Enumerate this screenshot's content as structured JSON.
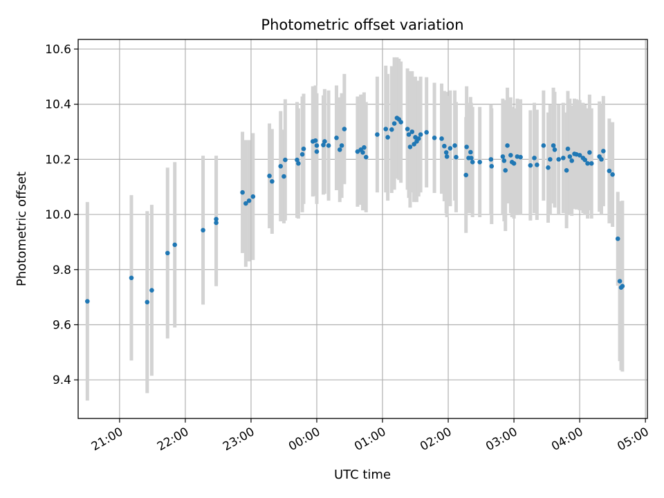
{
  "chart_data": {
    "type": "scatter",
    "title": "Photometric offset variation",
    "xlabel": "UTC time",
    "ylabel": "Photometric offset",
    "x_unit": "hours since 00:00 UTC",
    "xlim": [
      -3.63,
      5.03
    ],
    "ylim": [
      9.26,
      10.635
    ],
    "grid": true,
    "colors": {
      "point": "#1f77b4",
      "errorbar": "#d3d3d3",
      "grid": "#b0b0b0"
    },
    "x_ticks": [
      {
        "value": -3,
        "label": "21:00"
      },
      {
        "value": -2,
        "label": "22:00"
      },
      {
        "value": -1,
        "label": "23:00"
      },
      {
        "value": 0,
        "label": "00:00"
      },
      {
        "value": 1,
        "label": "01:00"
      },
      {
        "value": 2,
        "label": "02:00"
      },
      {
        "value": 3,
        "label": "03:00"
      },
      {
        "value": 4,
        "label": "04:00"
      },
      {
        "value": 5,
        "label": "05:00"
      }
    ],
    "y_ticks": [
      {
        "value": 9.4,
        "label": "9.4"
      },
      {
        "value": 9.6,
        "label": "9.6"
      },
      {
        "value": 9.8,
        "label": "9.8"
      },
      {
        "value": 10.0,
        "label": "10.0"
      },
      {
        "value": 10.2,
        "label": "10.2"
      },
      {
        "value": 10.4,
        "label": "10.4"
      },
      {
        "value": 10.6,
        "label": "10.6"
      }
    ],
    "points": [
      [
        -3.49,
        9.685,
        0.36
      ],
      [
        -2.82,
        9.77,
        0.3
      ],
      [
        -2.58,
        9.682,
        0.33
      ],
      [
        -2.51,
        9.725,
        0.31
      ],
      [
        -2.27,
        9.86,
        0.31
      ],
      [
        -2.16,
        9.89,
        0.3
      ],
      [
        -1.73,
        9.943,
        0.27
      ],
      [
        -1.53,
        9.97,
        0.23
      ],
      [
        -1.53,
        9.983,
        0.23
      ],
      [
        -1.13,
        10.08,
        0.22
      ],
      [
        -1.08,
        10.04,
        0.23
      ],
      [
        -1.03,
        10.05,
        0.22
      ],
      [
        -0.97,
        10.065,
        0.23
      ],
      [
        -0.72,
        10.14,
        0.19
      ],
      [
        -0.68,
        10.12,
        0.19
      ],
      [
        -0.55,
        10.175,
        0.2
      ],
      [
        -0.5,
        10.138,
        0.17
      ],
      [
        -0.48,
        10.198,
        0.22
      ],
      [
        -0.3,
        10.198,
        0.21
      ],
      [
        -0.28,
        10.185,
        0.2
      ],
      [
        -0.22,
        10.218,
        0.21
      ],
      [
        -0.2,
        10.238,
        0.2
      ],
      [
        -0.06,
        10.265,
        0.2
      ],
      [
        -0.02,
        10.268,
        0.2
      ],
      [
        0.0,
        10.25,
        0.19
      ],
      [
        0.0,
        10.228,
        0.19
      ],
      [
        0.1,
        10.252,
        0.18
      ],
      [
        0.12,
        10.265,
        0.19
      ],
      [
        0.18,
        10.25,
        0.2
      ],
      [
        0.3,
        10.278,
        0.19
      ],
      [
        0.35,
        10.235,
        0.19
      ],
      [
        0.38,
        10.25,
        0.19
      ],
      [
        0.42,
        10.31,
        0.2
      ],
      [
        0.62,
        10.228,
        0.2
      ],
      [
        0.67,
        10.235,
        0.2
      ],
      [
        0.7,
        10.225,
        0.21
      ],
      [
        0.72,
        10.243,
        0.2
      ],
      [
        0.75,
        10.208,
        0.2
      ],
      [
        0.92,
        10.29,
        0.21
      ],
      [
        1.05,
        10.31,
        0.23
      ],
      [
        1.08,
        10.28,
        0.23
      ],
      [
        1.14,
        10.308,
        0.23
      ],
      [
        1.18,
        10.33,
        0.24
      ],
      [
        1.22,
        10.35,
        0.22
      ],
      [
        1.25,
        10.345,
        0.22
      ],
      [
        1.28,
        10.335,
        0.22
      ],
      [
        1.38,
        10.31,
        0.22
      ],
      [
        1.4,
        10.29,
        0.23
      ],
      [
        1.42,
        10.245,
        0.22
      ],
      [
        1.45,
        10.3,
        0.22
      ],
      [
        1.48,
        10.255,
        0.21
      ],
      [
        1.5,
        10.28,
        0.22
      ],
      [
        1.52,
        10.265,
        0.22
      ],
      [
        1.55,
        10.275,
        0.21
      ],
      [
        1.58,
        10.29,
        0.21
      ],
      [
        1.67,
        10.298,
        0.2
      ],
      [
        1.79,
        10.278,
        0.2
      ],
      [
        1.9,
        10.275,
        0.2
      ],
      [
        1.94,
        10.248,
        0.2
      ],
      [
        1.97,
        10.225,
        0.22
      ],
      [
        1.98,
        10.21,
        0.22
      ],
      [
        2.03,
        10.24,
        0.21
      ],
      [
        2.1,
        10.25,
        0.2
      ],
      [
        2.12,
        10.208,
        0.2
      ],
      [
        2.27,
        10.143,
        0.21
      ],
      [
        2.28,
        10.245,
        0.22
      ],
      [
        2.31,
        10.205,
        0.2
      ],
      [
        2.34,
        10.226,
        0.2
      ],
      [
        2.35,
        10.205,
        0.2
      ],
      [
        2.37,
        10.19,
        0.2
      ],
      [
        2.48,
        10.19,
        0.2
      ],
      [
        2.65,
        10.2,
        0.2
      ],
      [
        2.66,
        10.175,
        0.21
      ],
      [
        2.83,
        10.21,
        0.21
      ],
      [
        2.85,
        10.195,
        0.22
      ],
      [
        2.87,
        10.16,
        0.22
      ],
      [
        2.9,
        10.25,
        0.21
      ],
      [
        2.95,
        10.215,
        0.21
      ],
      [
        2.97,
        10.19,
        0.2
      ],
      [
        3.0,
        10.185,
        0.2
      ],
      [
        3.05,
        10.21,
        0.21
      ],
      [
        3.1,
        10.208,
        0.21
      ],
      [
        3.25,
        10.178,
        0.2
      ],
      [
        3.31,
        10.205,
        0.2
      ],
      [
        3.35,
        10.18,
        0.2
      ],
      [
        3.45,
        10.25,
        0.2
      ],
      [
        3.52,
        10.17,
        0.2
      ],
      [
        3.55,
        10.2,
        0.2
      ],
      [
        3.6,
        10.25,
        0.21
      ],
      [
        3.62,
        10.235,
        0.21
      ],
      [
        3.68,
        10.2,
        0.2
      ],
      [
        3.75,
        10.205,
        0.2
      ],
      [
        3.8,
        10.16,
        0.21
      ],
      [
        3.82,
        10.238,
        0.21
      ],
      [
        3.85,
        10.21,
        0.21
      ],
      [
        3.88,
        10.195,
        0.2
      ],
      [
        3.92,
        10.22,
        0.2
      ],
      [
        3.95,
        10.218,
        0.2
      ],
      [
        4.0,
        10.215,
        0.2
      ],
      [
        4.05,
        10.205,
        0.2
      ],
      [
        4.08,
        10.198,
        0.2
      ],
      [
        4.12,
        10.185,
        0.2
      ],
      [
        4.15,
        10.225,
        0.21
      ],
      [
        4.18,
        10.185,
        0.2
      ],
      [
        4.3,
        10.21,
        0.2
      ],
      [
        4.33,
        10.2,
        0.2
      ],
      [
        4.36,
        10.23,
        0.2
      ],
      [
        4.45,
        10.158,
        0.19
      ],
      [
        4.5,
        10.145,
        0.19
      ],
      [
        4.58,
        9.912,
        0.17
      ],
      [
        4.61,
        9.758,
        0.29
      ],
      [
        4.63,
        9.735,
        0.3
      ],
      [
        4.65,
        9.74,
        0.31
      ]
    ]
  }
}
